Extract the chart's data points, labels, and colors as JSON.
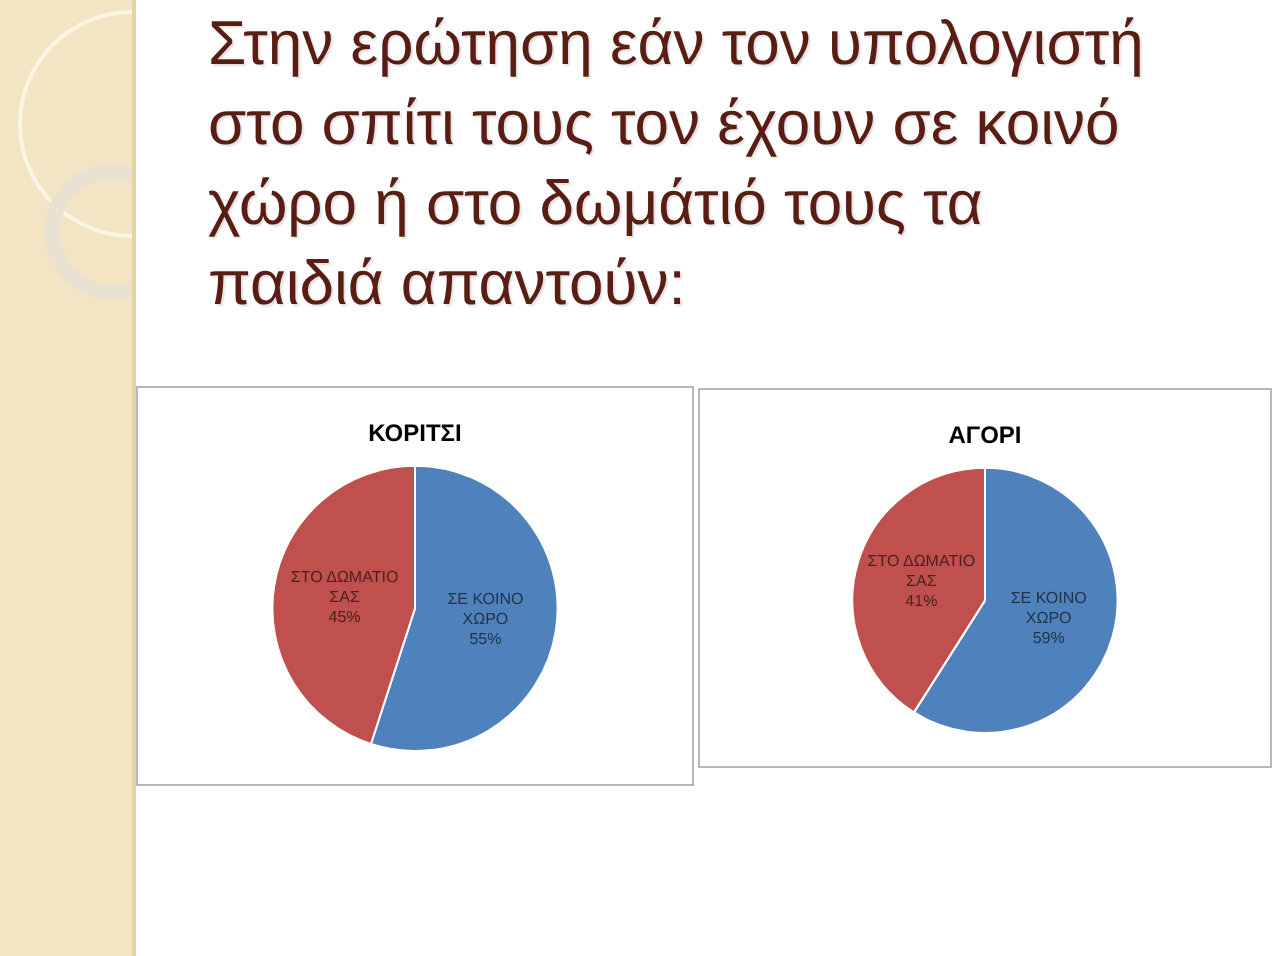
{
  "chart_data": [
    {
      "type": "other",
      "title": "Στην ερώτηση εάν τον υπολογιστή\nστο σπίτι τους τον έχουν σε κοινό\nχώρο ή στο δωμάτιό τους τα\nπαιδιά απαντούν:"
    },
    {
      "type": "pie",
      "title": "ΚΟΡΙΤΣΙ",
      "categories": [
        "ΣΕ ΚΟΙΝΟ ΧΩΡΟ",
        "ΣΤΟ ΔΩΜΑΤΙΟ ΣΑΣ"
      ],
      "values": [
        55,
        45
      ],
      "value_labels": [
        "55%",
        "45%"
      ],
      "colors": [
        "#4f81bd",
        "#c0504d"
      ]
    },
    {
      "type": "pie",
      "title": "ΑΓΟΡΙ",
      "categories": [
        "ΣΕ ΚΟΙΝΟ ΧΩΡΟ",
        "ΣΤΟ ΔΩΜΑΤΙΟ ΣΑΣ"
      ],
      "values": [
        59,
        41
      ],
      "value_labels": [
        "59%",
        "41%"
      ],
      "colors": [
        "#4f81bd",
        "#c0504d"
      ]
    }
  ]
}
